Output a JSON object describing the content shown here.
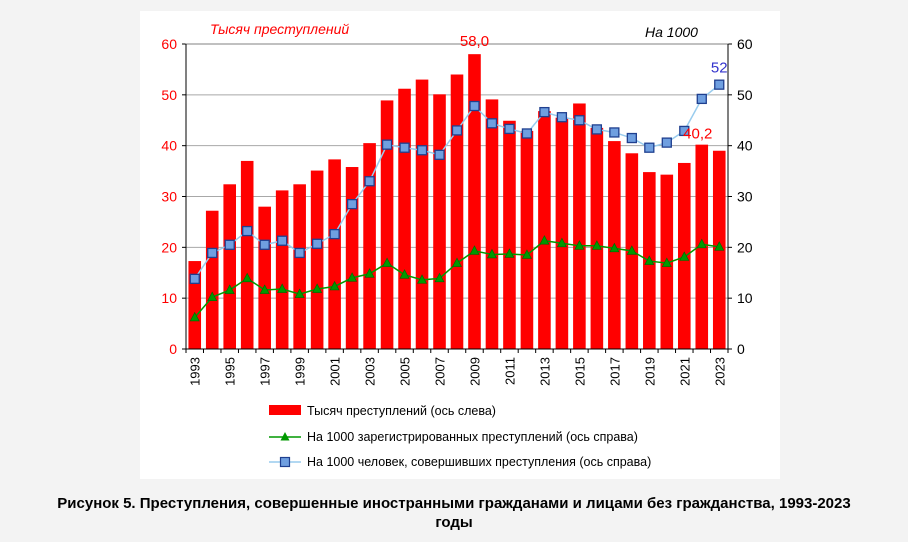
{
  "caption": {
    "line1": "Рисунок 5. Преступления, совершенные иностранными гражданами и лицами без гражданства, 1993-2023",
    "line2": "годы"
  },
  "chart_data": {
    "type": "bar",
    "left_axis_title": "Тысяч преступлений",
    "right_axis_title": "На 1000",
    "ylim_left": [
      0,
      60
    ],
    "ylim_right": [
      0,
      60
    ],
    "yticks": [
      "0",
      "10",
      "20",
      "30",
      "40",
      "50",
      "60"
    ],
    "grid": true,
    "legend_position": "bottom",
    "colors": {
      "bars": "#ff0000",
      "registered": "#009900",
      "persons": "#4f81bd",
      "persons_line": "#99ccee",
      "marker_fill": "#6f9fe0",
      "left_axis": "#ff0000",
      "right_axis": "#000000"
    },
    "x": [
      "1993",
      "1994",
      "1995",
      "1996",
      "1997",
      "1998",
      "1999",
      "2000",
      "2001",
      "2002",
      "2003",
      "2004",
      "2005",
      "2006",
      "2007",
      "2008",
      "2009",
      "2010",
      "2011",
      "2012",
      "2013",
      "2014",
      "2015",
      "2016",
      "2017",
      "2018",
      "2019",
      "2020",
      "2021",
      "2022",
      "2023"
    ],
    "x_tick_labels": [
      "1993",
      "",
      "1995",
      "",
      "1997",
      "",
      "1999",
      "",
      "2001",
      "",
      "2003",
      "",
      "2005",
      "",
      "2007",
      "",
      "2009",
      "",
      "2011",
      "",
      "2013",
      "",
      "2015",
      "",
      "2017",
      "",
      "2019",
      "",
      "2021",
      "",
      "2023"
    ],
    "series": [
      {
        "name": "Тысяч преступлений (ось слева)",
        "kind": "bar",
        "axis": "left",
        "values": [
          17.3,
          27.2,
          32.4,
          37.0,
          28.0,
          31.2,
          32.4,
          35.1,
          37.3,
          35.8,
          40.5,
          48.9,
          51.2,
          53.0,
          50.1,
          54.0,
          58.0,
          49.1,
          44.9,
          42.9,
          46.8,
          45.5,
          48.3,
          43.5,
          40.9,
          38.5,
          34.8,
          34.3,
          36.6,
          40.2,
          39.0
        ]
      },
      {
        "name": "На 1000 зарегистрированных преступлений (ось справа)",
        "kind": "line",
        "axis": "right",
        "values": [
          6.2,
          10.2,
          11.6,
          13.9,
          11.6,
          11.8,
          10.8,
          11.8,
          12.3,
          14.0,
          14.8,
          16.9,
          14.6,
          13.6,
          13.9,
          16.9,
          19.3,
          18.6,
          18.7,
          18.5,
          21.3,
          20.8,
          20.3,
          20.3,
          19.8,
          19.3,
          17.3,
          16.9,
          18.1,
          20.6,
          20.1
        ]
      },
      {
        "name": "На 1000 человек, совершивших преступления (ось справа)",
        "kind": "line",
        "axis": "right",
        "values": [
          13.8,
          18.9,
          20.5,
          23.2,
          20.5,
          21.3,
          18.9,
          20.7,
          22.6,
          28.5,
          33.0,
          40.2,
          39.6,
          39.1,
          38.2,
          43.0,
          47.8,
          44.4,
          43.3,
          42.4,
          46.6,
          45.6,
          45.0,
          43.2,
          42.6,
          41.5,
          39.6,
          40.6,
          42.9,
          49.2,
          52.0
        ]
      }
    ],
    "annotations": [
      {
        "text": "58,0",
        "series": 0,
        "index": 16,
        "color": "#ff0000"
      },
      {
        "text": "40,2",
        "series": 0,
        "index": 29,
        "color": "#ff0000"
      },
      {
        "text": "52",
        "series": 2,
        "index": 30,
        "color": "#3333cc"
      }
    ]
  }
}
